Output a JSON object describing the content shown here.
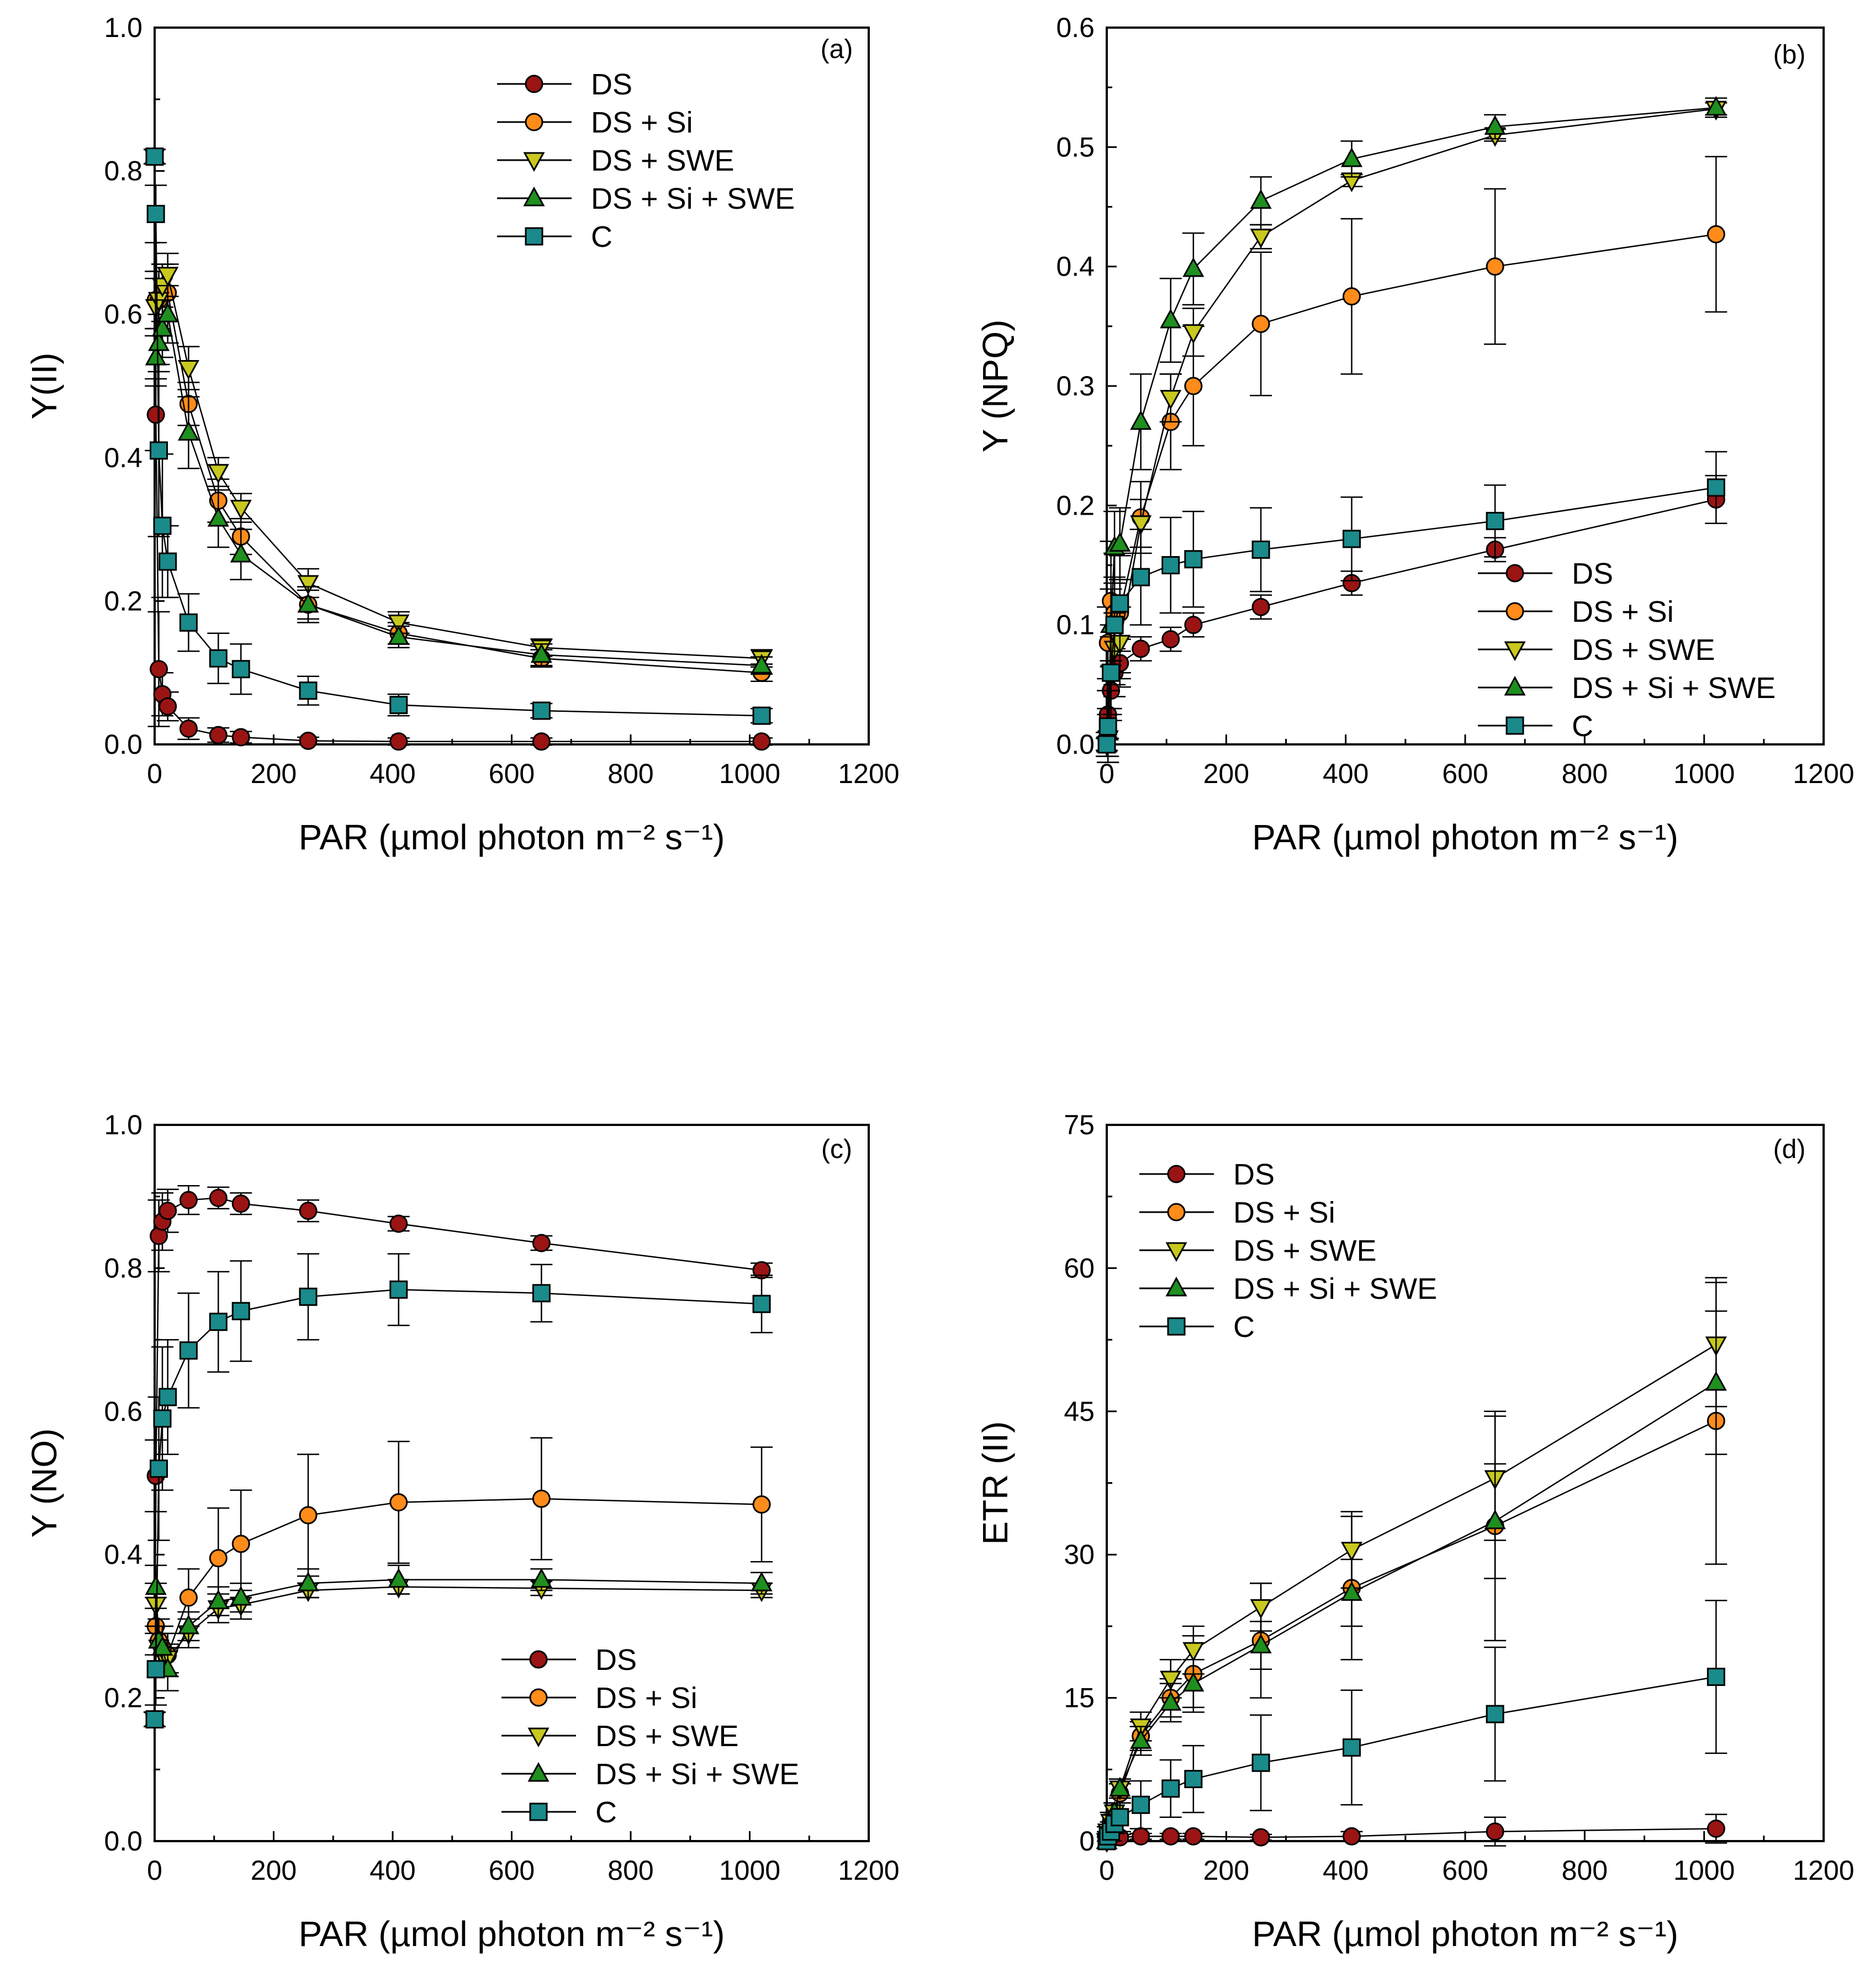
{
  "colors": {
    "DS": "#9b1414",
    "DS + Si": "#ff8c1a",
    "DS + SWE": "#c8c81e",
    "DS + Si + SWE": "#1f8f1f",
    "C": "#1a8a8a"
  },
  "chart_data": [
    {
      "type": "line",
      "panel_label": "(a)",
      "title": "",
      "xlabel": "PAR (µmol photon m⁻² s⁻¹)",
      "ylabel": "Y(II)",
      "xlim": [
        0,
        1200
      ],
      "ylim": [
        0,
        1.0
      ],
      "xticks": [
        "0",
        "200",
        "400",
        "600",
        "800",
        "1000",
        "1200"
      ],
      "yticks": [
        "0.0",
        "0.2",
        "0.4",
        "0.6",
        "0.8",
        "1.0"
      ],
      "legend_position": "top-right",
      "x": [
        0,
        2,
        7,
        13,
        22,
        57,
        107,
        145,
        258,
        410,
        650,
        1020
      ],
      "series": [
        {
          "name": "DS",
          "marker": "circle",
          "values": [
            0.82,
            0.46,
            0.105,
            0.07,
            0.053,
            0.022,
            0.013,
            0.01,
            0.005,
            0.004,
            0.004,
            0.004
          ],
          "err": [
            0.01,
            0.05,
            0.08,
            0.03,
            0.02,
            0.015,
            0.01,
            0.008,
            0.005,
            0.005,
            0.005,
            0.005
          ]
        },
        {
          "name": "DS + Si",
          "marker": "circle",
          "values": [
            0.82,
            0.62,
            0.62,
            0.63,
            0.63,
            0.475,
            0.34,
            0.29,
            0.195,
            0.155,
            0.12,
            0.1
          ],
          "err": [
            0.01,
            0.04,
            0.04,
            0.04,
            0.04,
            0.03,
            0.03,
            0.025,
            0.02,
            0.015,
            0.012,
            0.012
          ]
        },
        {
          "name": "DS + SWE",
          "marker": "triangle-down",
          "values": [
            0.82,
            0.61,
            0.62,
            0.64,
            0.655,
            0.525,
            0.38,
            0.33,
            0.225,
            0.17,
            0.135,
            0.12
          ],
          "err": [
            0.01,
            0.04,
            0.04,
            0.03,
            0.03,
            0.03,
            0.02,
            0.02,
            0.02,
            0.015,
            0.012,
            0.012
          ]
        },
        {
          "name": "DS + Si + SWE",
          "marker": "triangle-up",
          "values": [
            0.82,
            0.54,
            0.56,
            0.58,
            0.6,
            0.435,
            0.315,
            0.265,
            0.195,
            0.15,
            0.125,
            0.11
          ],
          "err": [
            0.01,
            0.04,
            0.04,
            0.04,
            0.04,
            0.05,
            0.04,
            0.035,
            0.025,
            0.015,
            0.015,
            0.012
          ]
        },
        {
          "name": "C",
          "marker": "square",
          "values": [
            0.82,
            0.74,
            0.41,
            0.305,
            0.255,
            0.17,
            0.12,
            0.105,
            0.075,
            0.055,
            0.047,
            0.04
          ],
          "err": [
            0.01,
            0.04,
            0.12,
            0.1,
            0.05,
            0.04,
            0.035,
            0.035,
            0.02,
            0.015,
            0.01,
            0.01
          ]
        }
      ]
    },
    {
      "type": "line",
      "panel_label": "(b)",
      "title": "",
      "xlabel": "PAR (µmol photon m⁻² s⁻¹)",
      "ylabel": "Y (NPQ)",
      "xlim": [
        0,
        1200
      ],
      "ylim": [
        0,
        0.6
      ],
      "xticks": [
        "0",
        "200",
        "400",
        "600",
        "800",
        "1000",
        "1200"
      ],
      "yticks": [
        "0.0",
        "0.1",
        "0.2",
        "0.3",
        "0.4",
        "0.5",
        "0.6"
      ],
      "legend_position": "bottom-right",
      "x": [
        0,
        2,
        7,
        13,
        22,
        57,
        107,
        145,
        258,
        410,
        650,
        1020
      ],
      "series": [
        {
          "name": "DS",
          "marker": "circle",
          "values": [
            0.0,
            0.025,
            0.045,
            0.06,
            0.068,
            0.08,
            0.088,
            0.1,
            0.115,
            0.135,
            0.163,
            0.205
          ],
          "err": [
            0.01,
            0.02,
            0.02,
            0.02,
            0.02,
            0.01,
            0.01,
            0.01,
            0.01,
            0.01,
            0.01,
            0.02
          ]
        },
        {
          "name": "DS + Si",
          "marker": "circle",
          "values": [
            0.0,
            0.085,
            0.12,
            0.11,
            0.11,
            0.19,
            0.27,
            0.3,
            0.352,
            0.375,
            0.4,
            0.427
          ],
          "err": [
            0.01,
            0.03,
            0.05,
            0.05,
            0.05,
            0.03,
            0.04,
            0.05,
            0.06,
            0.065,
            0.065,
            0.065
          ]
        },
        {
          "name": "DS + SWE",
          "marker": "triangle-down",
          "values": [
            0.0,
            0.005,
            0.06,
            0.08,
            0.085,
            0.185,
            0.29,
            0.345,
            0.425,
            0.472,
            0.51,
            0.532
          ],
          "err": [
            0.005,
            0.02,
            0.03,
            0.03,
            0.03,
            0.02,
            0.02,
            0.02,
            0.01,
            0.005,
            0.005,
            0.005
          ]
        },
        {
          "name": "DS + Si + SWE",
          "marker": "triangle-up",
          "values": [
            0.0,
            0.01,
            0.1,
            0.165,
            0.168,
            0.27,
            0.355,
            0.398,
            0.455,
            0.49,
            0.517,
            0.533
          ],
          "err": [
            0.005,
            0.02,
            0.03,
            0.03,
            0.03,
            0.04,
            0.035,
            0.03,
            0.02,
            0.015,
            0.01,
            0.008
          ]
        },
        {
          "name": "C",
          "marker": "square",
          "values": [
            0.0,
            0.015,
            0.06,
            0.1,
            0.118,
            0.14,
            0.15,
            0.155,
            0.163,
            0.172,
            0.187,
            0.215
          ],
          "err": [
            0.005,
            0.03,
            0.04,
            0.04,
            0.04,
            0.04,
            0.04,
            0.04,
            0.035,
            0.035,
            0.03,
            0.03
          ]
        }
      ]
    },
    {
      "type": "line",
      "panel_label": "(c)",
      "title": "",
      "xlabel": "PAR (µmol photon m⁻² s⁻¹)",
      "ylabel": "Y (NO)",
      "xlim": [
        0,
        1200
      ],
      "ylim": [
        0,
        1.0
      ],
      "xticks": [
        "0",
        "200",
        "400",
        "600",
        "800",
        "1000",
        "1200"
      ],
      "yticks": [
        "0.0",
        "0.2",
        "0.4",
        "0.6",
        "0.8",
        "1.0"
      ],
      "legend_position": "bottom-center",
      "x": [
        0,
        2,
        7,
        13,
        22,
        57,
        107,
        145,
        258,
        410,
        650,
        1020
      ],
      "series": [
        {
          "name": "DS",
          "marker": "circle",
          "values": [
            0.17,
            0.51,
            0.845,
            0.865,
            0.88,
            0.895,
            0.898,
            0.89,
            0.88,
            0.862,
            0.835,
            0.797
          ],
          "err": [
            0.01,
            0.05,
            0.05,
            0.04,
            0.03,
            0.02,
            0.015,
            0.015,
            0.015,
            0.01,
            0.01,
            0.01
          ]
        },
        {
          "name": "DS + Si",
          "marker": "circle",
          "values": [
            0.17,
            0.3,
            0.28,
            0.27,
            0.26,
            0.34,
            0.395,
            0.415,
            0.455,
            0.473,
            0.478,
            0.47
          ],
          "err": [
            0.01,
            0.04,
            0.03,
            0.03,
            0.03,
            0.04,
            0.07,
            0.075,
            0.085,
            0.085,
            0.085,
            0.08
          ]
        },
        {
          "name": "DS +  SWE",
          "marker": "triangle-down",
          "values": [
            0.17,
            0.33,
            0.27,
            0.26,
            0.255,
            0.29,
            0.325,
            0.33,
            0.35,
            0.355,
            0.353,
            0.35
          ],
          "err": [
            0.01,
            0.03,
            0.03,
            0.03,
            0.02,
            0.02,
            0.02,
            0.02,
            0.01,
            0.01,
            0.01,
            0.01
          ]
        },
        {
          "name": "DS + Si + SWE",
          "marker": "triangle-up",
          "values": [
            0.17,
            0.355,
            0.28,
            0.27,
            0.24,
            0.3,
            0.335,
            0.34,
            0.36,
            0.365,
            0.365,
            0.36
          ],
          "err": [
            0.01,
            0.03,
            0.03,
            0.03,
            0.03,
            0.02,
            0.02,
            0.02,
            0.02,
            0.02,
            0.015,
            0.015
          ]
        },
        {
          "name": "C",
          "marker": "square",
          "values": [
            0.17,
            0.24,
            0.52,
            0.59,
            0.62,
            0.685,
            0.725,
            0.74,
            0.76,
            0.77,
            0.765,
            0.75
          ],
          "err": [
            0.01,
            0.05,
            0.1,
            0.1,
            0.08,
            0.08,
            0.07,
            0.07,
            0.06,
            0.05,
            0.04,
            0.04
          ]
        }
      ]
    },
    {
      "type": "line",
      "panel_label": "(d)",
      "title": "",
      "xlabel": "PAR (µmol photon m⁻² s⁻¹)",
      "ylabel": "ETR (II)",
      "xlim": [
        0,
        1200
      ],
      "ylim": [
        0,
        75
      ],
      "xticks": [
        "0",
        "200",
        "400",
        "600",
        "800",
        "1000",
        "1200"
      ],
      "yticks": [
        "0",
        "15",
        "30",
        "45",
        "60",
        "75"
      ],
      "legend_position": "top-left",
      "x": [
        0,
        2,
        7,
        13,
        22,
        57,
        107,
        145,
        258,
        410,
        650,
        1020
      ],
      "series": [
        {
          "name": "DS",
          "marker": "circle",
          "values": [
            0,
            0.2,
            0.3,
            0.4,
            0.4,
            0.5,
            0.5,
            0.5,
            0.4,
            0.5,
            1.0,
            1.3
          ],
          "err": [
            0,
            0.2,
            0.2,
            0.3,
            0.3,
            0.3,
            0.3,
            0.3,
            0.3,
            0.5,
            1.5,
            1.5
          ]
        },
        {
          "name": "DS + Si",
          "marker": "circle",
          "values": [
            0,
            1,
            2,
            3,
            5,
            11,
            15,
            17.5,
            21,
            26.5,
            33,
            44
          ],
          "err": [
            0,
            0.5,
            1,
            1,
            1,
            1.5,
            2,
            4,
            6,
            7.5,
            12,
            15
          ]
        },
        {
          "name": "DS + SWE",
          "marker": "triangle-down",
          "values": [
            0,
            1,
            2,
            3,
            5.5,
            12,
            17,
            20,
            24.5,
            30.5,
            38,
            52
          ],
          "err": [
            0,
            0.5,
            1,
            1,
            1,
            1.5,
            2,
            2.5,
            2.5,
            4,
            6.5,
            6.5
          ]
        },
        {
          "name": "DS + Si + SWE",
          "marker": "triangle-up",
          "values": [
            0,
            1,
            2,
            3,
            5.5,
            10.5,
            14.5,
            16.5,
            20.5,
            26,
            33.5,
            48
          ],
          "err": [
            0,
            0.5,
            1,
            1,
            1,
            1.5,
            2,
            2.5,
            2.5,
            3.5,
            6,
            7.5
          ]
        },
        {
          "name": "C",
          "marker": "square",
          "values": [
            0,
            0.5,
            1,
            1.8,
            2.5,
            3.8,
            5.5,
            6.5,
            8.2,
            9.8,
            13.3,
            17.2
          ],
          "err": [
            0,
            0.5,
            1,
            1,
            1.5,
            2.5,
            3,
            3.5,
            5,
            6,
            7,
            8
          ]
        }
      ]
    }
  ]
}
